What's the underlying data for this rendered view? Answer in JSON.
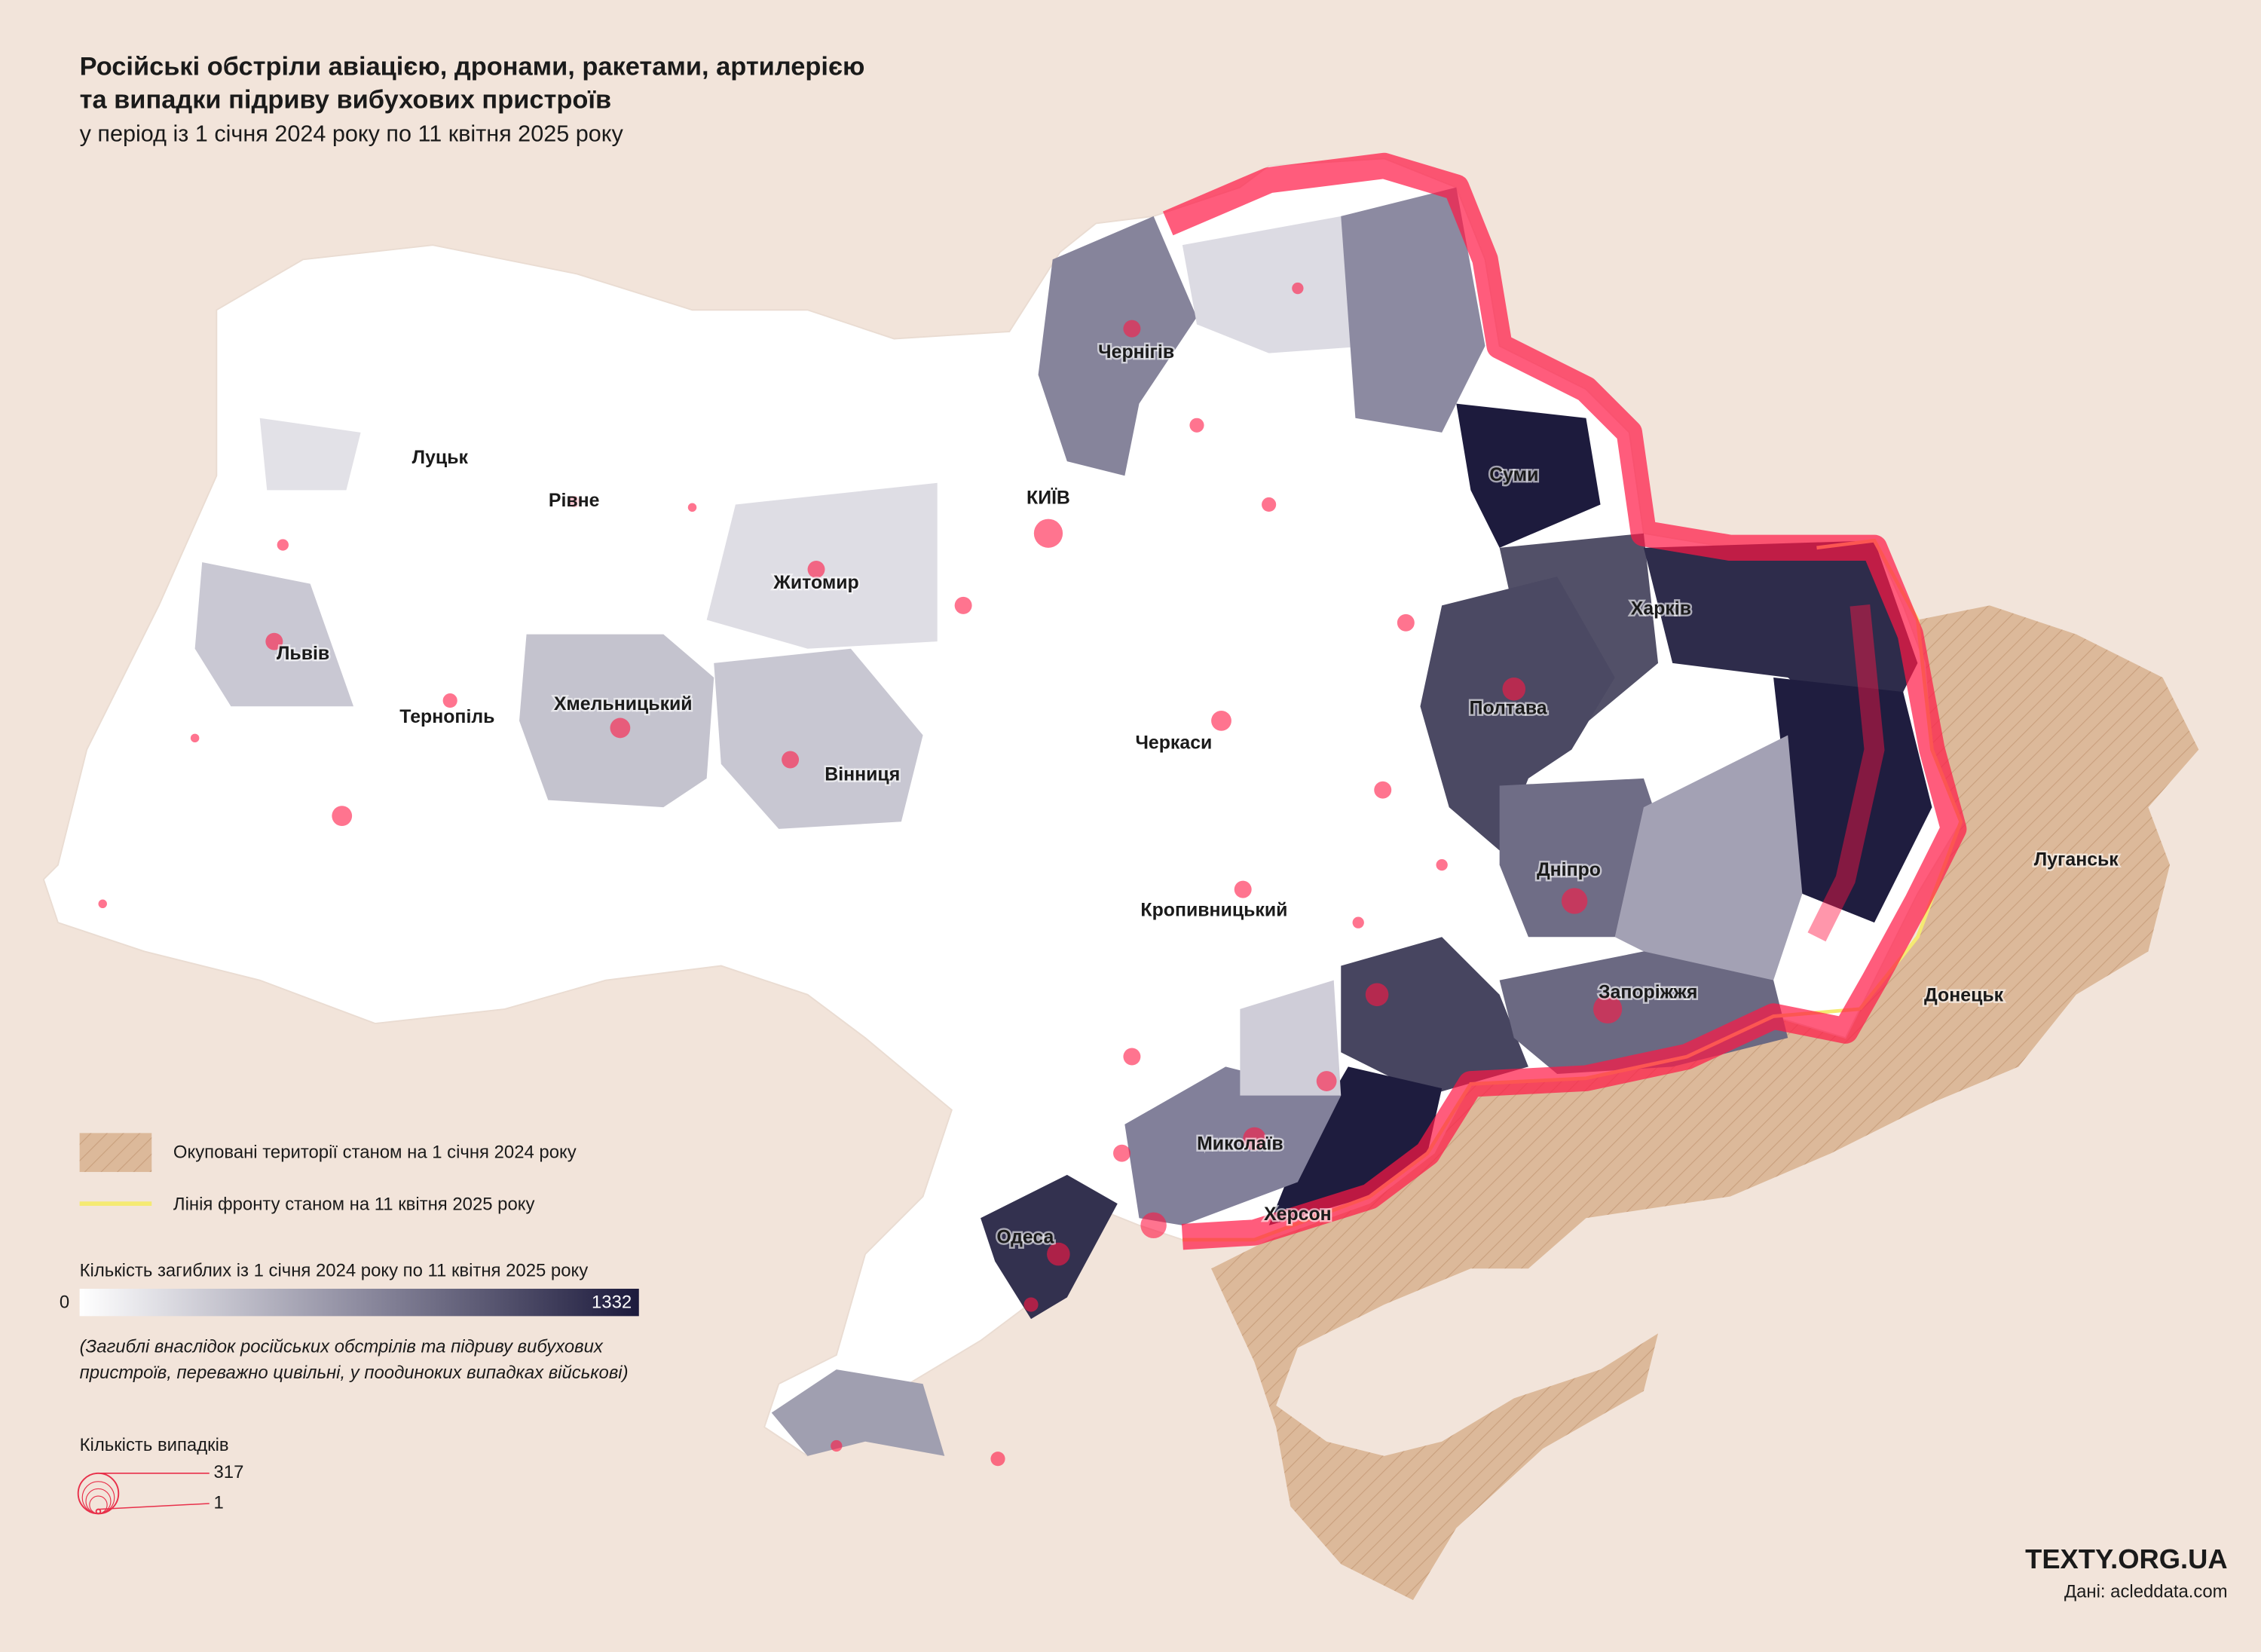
{
  "title": {
    "line1": "Російські обстріли авіацією, дронами, ракетами, артилерією",
    "line2": "та випадки підриву вибухових пристроїв",
    "subtitle": "у період із 1 січня 2024 року по 11 квітня 2025 року"
  },
  "cities": [
    {
      "label": "Луцьк"
    },
    {
      "label": "Рівне"
    },
    {
      "label": "Житомир"
    },
    {
      "label": "КИЇВ"
    },
    {
      "label": "Чернігів"
    },
    {
      "label": "Суми"
    },
    {
      "label": "Харків"
    },
    {
      "label": "Полтава"
    },
    {
      "label": "Черкаси"
    },
    {
      "label": "Львів"
    },
    {
      "label": "Тернопіль"
    },
    {
      "label": "Хмельницький"
    },
    {
      "label": "Вінниця"
    },
    {
      "label": "Кропивницький"
    },
    {
      "label": "Дніпро"
    },
    {
      "label": "Запоріжжя"
    },
    {
      "label": "Донецьк"
    },
    {
      "label": "Луганськ"
    },
    {
      "label": "Миколаїв"
    },
    {
      "label": "Херсон"
    },
    {
      "label": "Одеса"
    }
  ],
  "legend": {
    "occupied": "Окуповані території станом на 1 січня 2024 року",
    "frontline": "Лінія фронту станом на 11 квітня 2025 року",
    "deaths_title": "Кількість загиблих із 1 січня 2024 року по 11 квітня 2025 року",
    "deaths_min": 0,
    "deaths_max": 1332,
    "deaths_note_1": "(Загиблі внаслідок російських обстрілів та підриву вибухових",
    "deaths_note_2": "пристроїв, переважно цивільні, у поодиноких випадках військові)",
    "cases_title": "Кількість випадків",
    "cases_max": 317,
    "cases_min": 1
  },
  "footer": {
    "brand": "TEXTY.ORG.UA",
    "source": "Дані: acleddata.com"
  }
}
